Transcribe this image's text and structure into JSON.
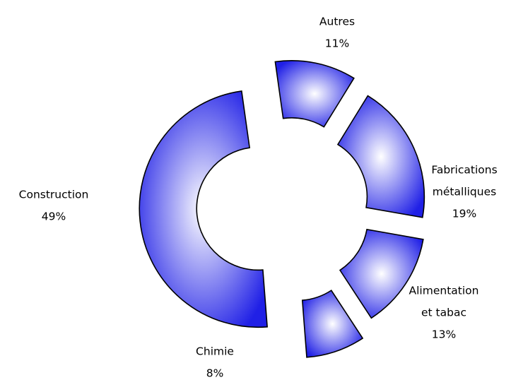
{
  "chart_data": {
    "type": "pie",
    "variant": "exploded-donut",
    "slices": [
      {
        "label": [
          "Autres"
        ],
        "value": 11,
        "value_label": "11%"
      },
      {
        "label": [
          "Fabrications",
          "métalliques"
        ],
        "value": 19,
        "value_label": "19%"
      },
      {
        "label": [
          "Alimentation",
          "et tabac"
        ],
        "value": 13,
        "value_label": "13%"
      },
      {
        "label": [
          "Chimie"
        ],
        "value": 8,
        "value_label": "8%"
      },
      {
        "label": [
          "Construction"
        ],
        "value": 49,
        "value_label": "49%"
      }
    ],
    "colors": {
      "edge": "#2020e6",
      "center": "#ffffff",
      "stroke": "#000000"
    }
  }
}
